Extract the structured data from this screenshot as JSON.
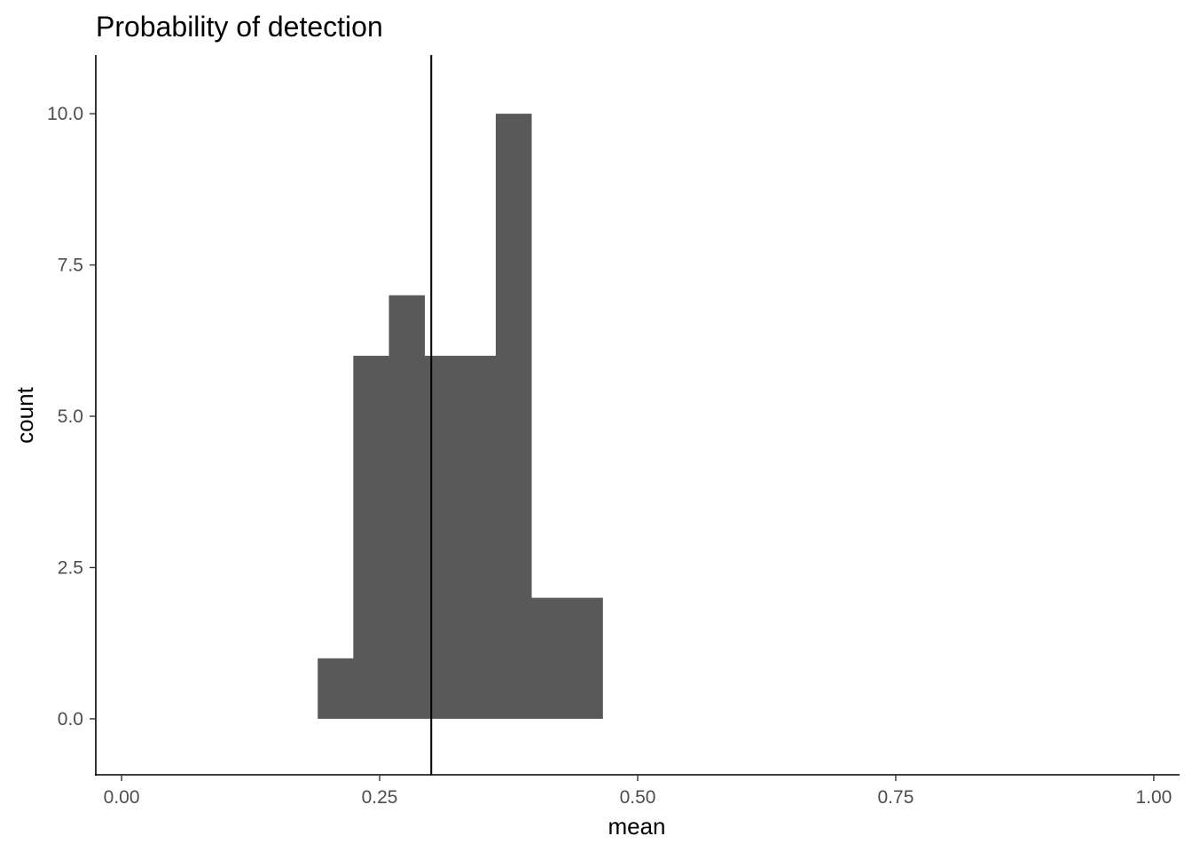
{
  "chart_data": {
    "type": "bar",
    "subtype": "histogram",
    "title": "Probability of detection",
    "xlabel": "mean",
    "ylabel": "count",
    "xlim": [
      -0.025,
      1.025
    ],
    "ylim": [
      -0.925,
      10.97
    ],
    "x_ticks": [
      {
        "value": 0.0,
        "label": "0.00"
      },
      {
        "value": 0.25,
        "label": "0.25"
      },
      {
        "value": 0.5,
        "label": "0.50"
      },
      {
        "value": 0.75,
        "label": "0.75"
      },
      {
        "value": 1.0,
        "label": "1.00"
      }
    ],
    "y_ticks": [
      {
        "value": 0.0,
        "label": "0.0"
      },
      {
        "value": 2.5,
        "label": "2.5"
      },
      {
        "value": 5.0,
        "label": "5.0"
      },
      {
        "value": 7.5,
        "label": "7.5"
      },
      {
        "value": 10.0,
        "label": "10.0"
      }
    ],
    "bins": [
      {
        "x0": 0.19,
        "x1": 0.2245,
        "count": 1
      },
      {
        "x0": 0.2245,
        "x1": 0.259,
        "count": 6
      },
      {
        "x0": 0.259,
        "x1": 0.2935,
        "count": 7
      },
      {
        "x0": 0.2935,
        "x1": 0.328,
        "count": 6
      },
      {
        "x0": 0.328,
        "x1": 0.3625,
        "count": 6
      },
      {
        "x0": 0.3625,
        "x1": 0.397,
        "count": 10
      },
      {
        "x0": 0.397,
        "x1": 0.4315,
        "count": 2
      },
      {
        "x0": 0.4315,
        "x1": 0.466,
        "count": 2
      }
    ],
    "vline_x": 0.3,
    "bar_color": "#595959",
    "vline_color": "#000000",
    "grid": false,
    "legend": "none"
  }
}
